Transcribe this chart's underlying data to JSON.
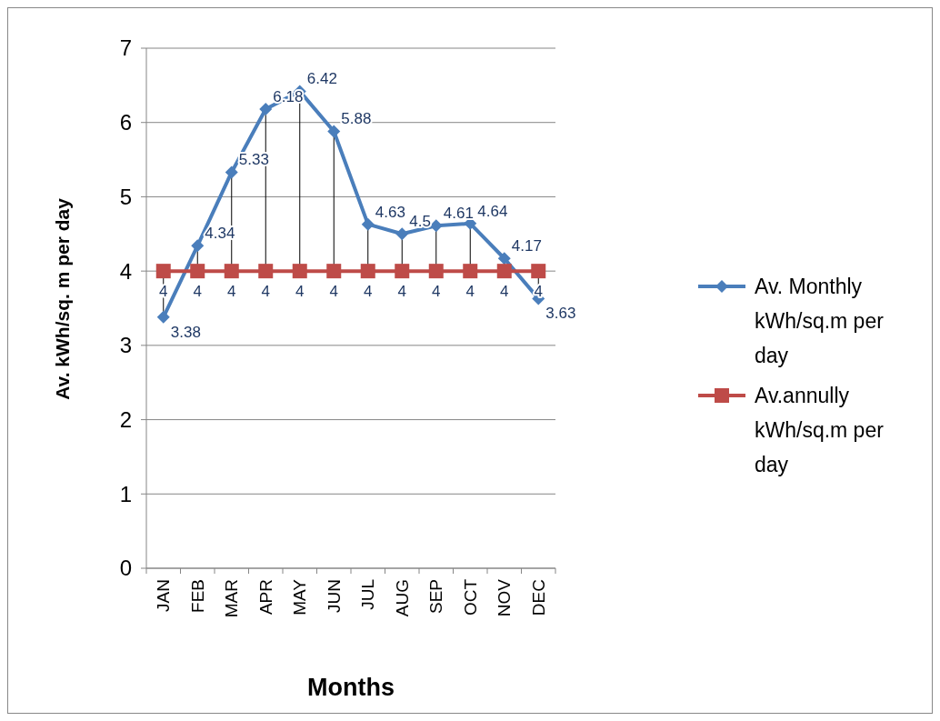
{
  "chart_data": {
    "type": "line",
    "ylabel": "Av. kWh/sq. m per day",
    "xlabel": "Months",
    "categories": [
      "JAN",
      "FEB",
      "MAR",
      "APR",
      "MAY",
      "JUN",
      "JUL",
      "AUG",
      "SEP",
      "OCT",
      "NOV",
      "DEC"
    ],
    "series": [
      {
        "name": "Av. Monthly kWh/sq.m per day",
        "color": "#4a7ebb",
        "marker": "diamond",
        "values": [
          3.38,
          4.34,
          5.33,
          6.18,
          6.42,
          5.88,
          4.63,
          4.5,
          4.61,
          4.64,
          4.17,
          3.63
        ]
      },
      {
        "name": "Av.annully kWh/sq.m per day",
        "color": "#be4b48",
        "marker": "square",
        "values": [
          4,
          4,
          4,
          4,
          4,
          4,
          4,
          4,
          4,
          4,
          4,
          4
        ]
      }
    ],
    "ylim": [
      0,
      7
    ],
    "yticks": [
      0,
      1,
      2,
      3,
      4,
      5,
      6,
      7
    ],
    "grid": "y",
    "legend": "right",
    "data_labels": true
  }
}
